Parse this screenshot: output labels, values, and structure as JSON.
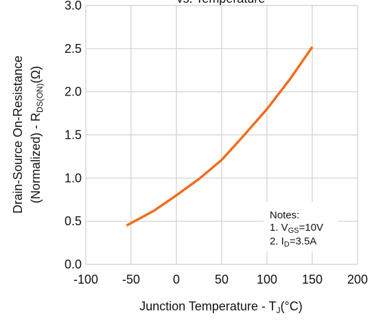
{
  "chart_data": {
    "type": "line",
    "title": "vs. Temperature",
    "xlabel": {
      "main": "Junction Temperature - T",
      "sub": "J",
      "tail": "(°C)"
    },
    "ylabel": {
      "line1": "Drain-Source On-Resistance",
      "main": "(Normalized) - R",
      "sub": "DS(ON)",
      "tail": "(Ω)"
    },
    "notes": {
      "title": "Notes:",
      "line1": {
        "main": "1. V",
        "sub": "GS",
        "tail": "=10V"
      },
      "line2": {
        "main": "2. I",
        "sub": "D",
        "tail": "=3.5A"
      }
    },
    "x": [
      -55,
      -25,
      0,
      25,
      50,
      75,
      100,
      125,
      150
    ],
    "series": [
      {
        "color": "#f26d1a",
        "values": [
          0.45,
          0.62,
          0.8,
          0.99,
          1.21,
          1.5,
          1.8,
          2.14,
          2.52
        ]
      }
    ],
    "xlim": [
      -100,
      200
    ],
    "xticks": [
      -100,
      -50,
      0,
      50,
      100,
      150,
      200
    ],
    "ylim": [
      0,
      3
    ],
    "yticks": [
      {
        "value": 0,
        "label": "0.0"
      },
      0.5,
      {
        "value": 1,
        "label": "1.0"
      },
      1.5,
      {
        "value": 2,
        "label": "2.0"
      },
      2.5,
      {
        "value": 3,
        "label": "3.0"
      }
    ],
    "grid": true
  }
}
